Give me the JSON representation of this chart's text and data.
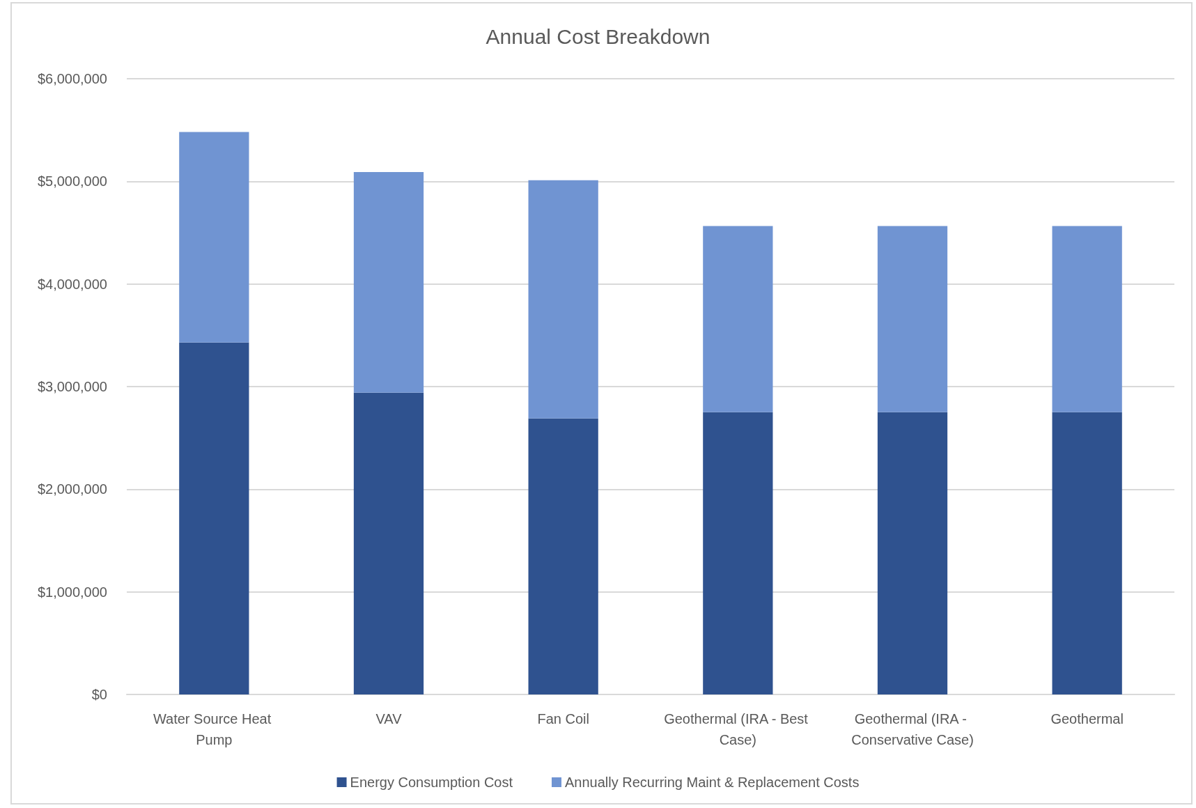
{
  "chart_data": {
    "type": "bar",
    "title": "Annual Cost Breakdown",
    "categories": [
      "Water Source Heat Pump",
      "VAV",
      "Fan Coil",
      "Geothermal (IRA - Best Case)",
      "Geothermal (IRA - Conservative Case)",
      "Geothermal"
    ],
    "series": [
      {
        "name": "Energy Consumption Cost",
        "color": "#2f528f",
        "values": [
          3430000,
          2940000,
          2690000,
          2750000,
          2750000,
          2750000
        ]
      },
      {
        "name": "Annually Recurring Maint & Replacement Costs",
        "color": "#7094d2",
        "values": [
          2050000,
          2150000,
          2320000,
          1815000,
          1815000,
          1815000
        ]
      }
    ],
    "stacked": true,
    "ylim": [
      0,
      6000000
    ],
    "yticks": [
      {
        "value": 0,
        "label": "$0"
      },
      {
        "value": 1000000,
        "label": "$1,000,000"
      },
      {
        "value": 2000000,
        "label": "$2,000,000"
      },
      {
        "value": 3000000,
        "label": "$3,000,000"
      },
      {
        "value": 4000000,
        "label": "$4,000,000"
      },
      {
        "value": 5000000,
        "label": "$5,000,000"
      },
      {
        "value": 6000000,
        "label": "$6,000,000"
      }
    ],
    "grid": "y",
    "legend": "bottom"
  }
}
